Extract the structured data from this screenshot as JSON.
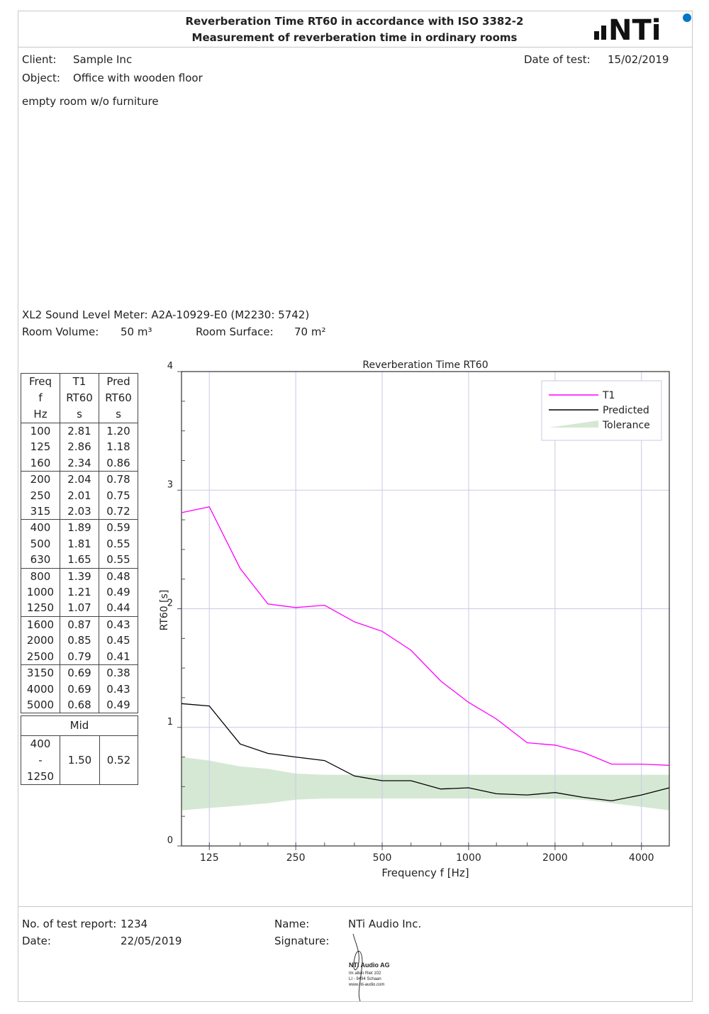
{
  "header": {
    "title_line1": "Reverberation Time RT60 in accordance with ISO 3382-2",
    "title_line2": "Measurement of reverberation time in ordinary rooms",
    "logo_text": "NTi"
  },
  "info": {
    "client_label": "Client:",
    "client": "Sample Inc",
    "object_label": "Object:",
    "object": "Office with wooden floor",
    "date_label": "Date of test:",
    "date": "15/02/2019",
    "description": "empty room w/o furniture"
  },
  "device": {
    "meter": "XL2 Sound Level Meter: A2A-10929-E0 (M2230: 5742)",
    "volume_label": "Room Volume:",
    "volume": "50 m³",
    "surface_label": "Room Surface:",
    "surface": "70 m²"
  },
  "table": {
    "headers": [
      [
        "Freq",
        "f",
        "Hz"
      ],
      [
        "T1",
        "RT60",
        "s"
      ],
      [
        "Pred",
        "RT60",
        "s"
      ]
    ],
    "rows": [
      [
        "100",
        "2.81",
        "1.20"
      ],
      [
        "125",
        "2.86",
        "1.18"
      ],
      [
        "160",
        "2.34",
        "0.86"
      ],
      [
        "200",
        "2.04",
        "0.78"
      ],
      [
        "250",
        "2.01",
        "0.75"
      ],
      [
        "315",
        "2.03",
        "0.72"
      ],
      [
        "400",
        "1.89",
        "0.59"
      ],
      [
        "500",
        "1.81",
        "0.55"
      ],
      [
        "630",
        "1.65",
        "0.55"
      ],
      [
        "800",
        "1.39",
        "0.48"
      ],
      [
        "1000",
        "1.21",
        "0.49"
      ],
      [
        "1250",
        "1.07",
        "0.44"
      ],
      [
        "1600",
        "0.87",
        "0.43"
      ],
      [
        "2000",
        "0.85",
        "0.45"
      ],
      [
        "2500",
        "0.79",
        "0.41"
      ],
      [
        "3150",
        "0.69",
        "0.38"
      ],
      [
        "4000",
        "0.69",
        "0.43"
      ],
      [
        "5000",
        "0.68",
        "0.49"
      ]
    ],
    "mid": {
      "label": "Mid",
      "range": [
        "400",
        "-",
        "1250"
      ],
      "t1": "1.50",
      "pred": "0.52"
    }
  },
  "chart_data": {
    "type": "line",
    "title": "Reverberation Time RT60",
    "xlabel": "Frequency f [Hz]",
    "ylabel": "RT60 [s]",
    "x_scale": "log",
    "ylim": [
      0,
      4
    ],
    "xlim": [
      100,
      5000
    ],
    "x_ticks": [
      125,
      250,
      500,
      1000,
      2000,
      4000
    ],
    "y_ticks": [
      0,
      1,
      2,
      3,
      4
    ],
    "grid": true,
    "legend_position": "top-right",
    "x": [
      100,
      125,
      160,
      200,
      250,
      315,
      400,
      500,
      630,
      800,
      1000,
      1250,
      1600,
      2000,
      2500,
      3150,
      4000,
      5000
    ],
    "series": [
      {
        "name": "T1",
        "color": "#ff00ff",
        "values": [
          2.81,
          2.86,
          2.34,
          2.04,
          2.01,
          2.03,
          1.89,
          1.81,
          1.65,
          1.39,
          1.21,
          1.07,
          0.87,
          0.85,
          0.79,
          0.69,
          0.69,
          0.68
        ]
      },
      {
        "name": "Predicted",
        "color": "#000000",
        "values": [
          1.2,
          1.18,
          0.86,
          0.78,
          0.75,
          0.72,
          0.59,
          0.55,
          0.55,
          0.48,
          0.49,
          0.44,
          0.43,
          0.45,
          0.41,
          0.38,
          0.43,
          0.49
        ]
      }
    ],
    "tolerance": {
      "name": "Tolerance",
      "color": "#d5e8d4",
      "upper": [
        0.75,
        0.72,
        0.67,
        0.65,
        0.61,
        0.6,
        0.6,
        0.6,
        0.6,
        0.6,
        0.6,
        0.6,
        0.6,
        0.6,
        0.6,
        0.6,
        0.6,
        0.6
      ],
      "lower": [
        0.3,
        0.32,
        0.34,
        0.36,
        0.39,
        0.4,
        0.4,
        0.4,
        0.4,
        0.4,
        0.4,
        0.4,
        0.4,
        0.4,
        0.39,
        0.36,
        0.33,
        0.3
      ]
    }
  },
  "footer": {
    "report_label": "No. of test report:",
    "report_no": "1234",
    "date_label": "Date:",
    "date": "22/05/2019",
    "name_label": "Name:",
    "name": "NTi Audio Inc.",
    "signature_label": "Signature:",
    "stamp": [
      "NTi Audio AG",
      "Im alten Riet 102",
      "LI - 9494 Schaan",
      "www.nti-audio.com"
    ]
  }
}
